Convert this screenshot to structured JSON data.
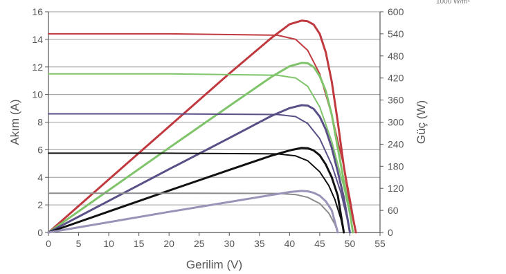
{
  "chart_data": {
    "type": "line",
    "title": "",
    "corner_note": "1000 W/m²",
    "xlabel": "Gerilim (V)",
    "ylabel": "Akım (A)",
    "y2label": "Güç (W)",
    "xlim": [
      0,
      55
    ],
    "ylim": [
      0,
      16
    ],
    "y2lim": [
      0,
      600
    ],
    "xticks": [
      "0",
      "5",
      "10",
      "15",
      "20",
      "25",
      "30",
      "35",
      "40",
      "45",
      "50",
      "55"
    ],
    "yticks": [
      "0",
      "2",
      "4",
      "6",
      "8",
      "10",
      "12",
      "14",
      "16"
    ],
    "y2ticks": [
      "0",
      "60",
      "120",
      "180",
      "240",
      "300",
      "360",
      "420",
      "480",
      "540",
      "600"
    ],
    "grid": "horizontal",
    "legend": "none",
    "series": [
      {
        "kind": "current",
        "color": "#c0393f",
        "isc": 14.4,
        "voc": 51.0,
        "points": [
          [
            0,
            14.4
          ],
          [
            20,
            14.4
          ],
          [
            38,
            14.3
          ],
          [
            41,
            14.0
          ],
          [
            43,
            13.2
          ],
          [
            45,
            11.5
          ],
          [
            47,
            8.5
          ],
          [
            49,
            4.8
          ],
          [
            50,
            2.5
          ],
          [
            51,
            0
          ]
        ]
      },
      {
        "kind": "power",
        "color": "#c0393f",
        "points": [
          [
            0,
            0
          ],
          [
            10,
            144
          ],
          [
            20,
            288
          ],
          [
            30,
            432
          ],
          [
            37,
            529
          ],
          [
            40,
            566
          ],
          [
            42,
            576
          ],
          [
            43,
            574
          ],
          [
            44,
            565
          ],
          [
            45,
            540
          ],
          [
            46,
            490
          ],
          [
            47,
            410
          ],
          [
            48,
            300
          ],
          [
            49,
            180
          ],
          [
            50,
            80
          ],
          [
            51,
            0
          ]
        ]
      },
      {
        "kind": "current",
        "color": "#7fc46a",
        "isc": 11.5,
        "voc": 50.5,
        "points": [
          [
            0,
            11.5
          ],
          [
            20,
            11.5
          ],
          [
            38,
            11.4
          ],
          [
            41,
            11.2
          ],
          [
            43,
            10.6
          ],
          [
            45,
            9.1
          ],
          [
            47,
            6.6
          ],
          [
            49,
            3.3
          ],
          [
            50,
            1.3
          ],
          [
            50.5,
            0
          ]
        ]
      },
      {
        "kind": "power",
        "color": "#7fc46a",
        "points": [
          [
            0,
            0
          ],
          [
            10,
            115
          ],
          [
            20,
            230
          ],
          [
            30,
            344
          ],
          [
            37,
            423
          ],
          [
            40,
            452
          ],
          [
            42,
            461
          ],
          [
            43,
            460
          ],
          [
            44,
            450
          ],
          [
            45,
            425
          ],
          [
            46,
            385
          ],
          [
            47,
            320
          ],
          [
            48,
            230
          ],
          [
            49,
            140
          ],
          [
            50,
            55
          ],
          [
            50.5,
            0
          ]
        ]
      },
      {
        "kind": "current",
        "color": "#5a4f86",
        "isc": 8.6,
        "voc": 50.0,
        "points": [
          [
            0,
            8.6
          ],
          [
            20,
            8.6
          ],
          [
            38,
            8.55
          ],
          [
            41,
            8.4
          ],
          [
            43,
            7.9
          ],
          [
            45,
            6.8
          ],
          [
            47,
            4.9
          ],
          [
            48.5,
            2.9
          ],
          [
            49.5,
            1.1
          ],
          [
            50,
            0
          ]
        ]
      },
      {
        "kind": "power",
        "color": "#5a4f86",
        "points": [
          [
            0,
            0
          ],
          [
            10,
            86
          ],
          [
            20,
            172
          ],
          [
            30,
            257
          ],
          [
            37,
            317
          ],
          [
            40,
            338
          ],
          [
            42,
            346
          ],
          [
            43,
            345
          ],
          [
            44,
            336
          ],
          [
            45,
            315
          ],
          [
            46,
            280
          ],
          [
            47,
            230
          ],
          [
            48,
            165
          ],
          [
            49,
            95
          ],
          [
            50,
            0
          ]
        ]
      },
      {
        "kind": "current",
        "color": "#111111",
        "isc": 5.75,
        "voc": 49.0,
        "points": [
          [
            0,
            5.75
          ],
          [
            20,
            5.75
          ],
          [
            38,
            5.7
          ],
          [
            41,
            5.55
          ],
          [
            43,
            5.2
          ],
          [
            45,
            4.4
          ],
          [
            46.5,
            3.4
          ],
          [
            47.5,
            2.4
          ],
          [
            48.5,
            1.0
          ],
          [
            49,
            0
          ]
        ]
      },
      {
        "kind": "power",
        "color": "#111111",
        "points": [
          [
            0,
            0
          ],
          [
            10,
            57
          ],
          [
            20,
            114
          ],
          [
            30,
            170
          ],
          [
            37,
            209
          ],
          [
            40,
            223
          ],
          [
            42,
            230
          ],
          [
            43,
            229
          ],
          [
            44,
            223
          ],
          [
            45,
            210
          ],
          [
            46,
            185
          ],
          [
            47,
            150
          ],
          [
            48,
            100
          ],
          [
            49,
            0
          ]
        ]
      },
      {
        "kind": "current",
        "color": "#8b8b8b",
        "isc": 2.85,
        "voc": 48.0,
        "points": [
          [
            0,
            2.85
          ],
          [
            20,
            2.85
          ],
          [
            38,
            2.83
          ],
          [
            41,
            2.75
          ],
          [
            43,
            2.55
          ],
          [
            45,
            2.1
          ],
          [
            46.5,
            1.4
          ],
          [
            47.5,
            0.6
          ],
          [
            48,
            0
          ]
        ]
      },
      {
        "kind": "power",
        "color": "#9a93b8",
        "points": [
          [
            0,
            0
          ],
          [
            10,
            28
          ],
          [
            20,
            56
          ],
          [
            30,
            83
          ],
          [
            37,
            102
          ],
          [
            40,
            110
          ],
          [
            42,
            113
          ],
          [
            43,
            112
          ],
          [
            44,
            108
          ],
          [
            45,
            100
          ],
          [
            46,
            85
          ],
          [
            47,
            60
          ],
          [
            48,
            0
          ]
        ]
      }
    ]
  }
}
